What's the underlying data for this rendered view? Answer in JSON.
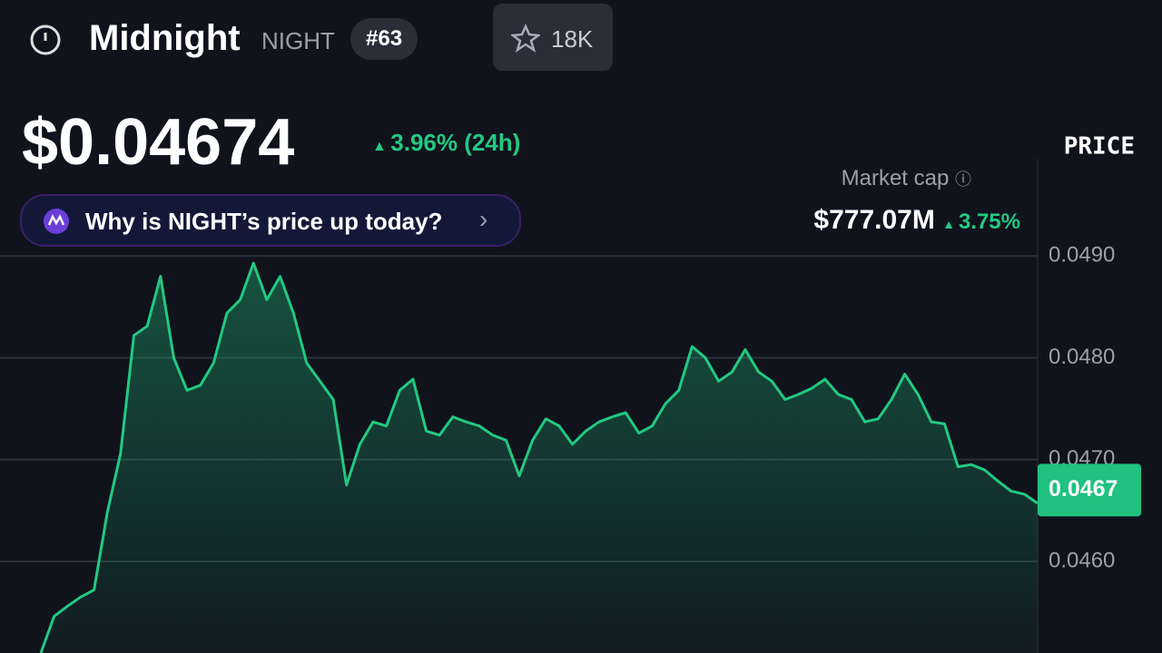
{
  "header": {
    "name": "Midnight",
    "symbol": "NIGHT",
    "rank": "#63",
    "watchlist": "18K",
    "price": "$0.04674",
    "change": "3.96% (24h)",
    "prompt": "Why is NIGHT’s price up today?",
    "market_cap_label": "Market cap",
    "market_cap": "$777.07M",
    "market_cap_change": "3.75%"
  },
  "chart_data": {
    "type": "line",
    "axis_title": "PRICE",
    "color": "#22c982",
    "values": [
      0.0451,
      0.04546,
      0.04556,
      0.04565,
      0.04572,
      0.04648,
      0.04706,
      0.04822,
      0.04831,
      0.0488,
      0.048,
      0.04768,
      0.04773,
      0.04795,
      0.04844,
      0.04857,
      0.04893,
      0.04857,
      0.0488,
      0.04844,
      0.04795,
      0.04777,
      0.04759,
      0.04675,
      0.04715,
      0.04737,
      0.04733,
      0.04768,
      0.04779,
      0.04728,
      0.04724,
      0.04742,
      0.04737,
      0.04733,
      0.04724,
      0.04719,
      0.04684,
      0.04719,
      0.0474,
      0.04733,
      0.04715,
      0.04728,
      0.04737,
      0.04742,
      0.04746,
      0.04726,
      0.04733,
      0.04755,
      0.04768,
      0.04811,
      0.048,
      0.04777,
      0.04786,
      0.04808,
      0.04786,
      0.04777,
      0.04759,
      0.04764,
      0.0477,
      0.04779,
      0.04764,
      0.04759,
      0.04737,
      0.0474,
      0.04759,
      0.04784,
      0.04764,
      0.04737,
      0.04735,
      0.04693,
      0.04695,
      0.0469,
      0.04679,
      0.04669,
      0.04666,
      0.04657
    ],
    "ylim": [
      0.0451,
      0.05
    ],
    "yticks": [
      {
        "value": 0.046,
        "label": "0.0460"
      },
      {
        "value": 0.047,
        "label": "0.0470"
      },
      {
        "value": 0.048,
        "label": "0.0480"
      },
      {
        "value": 0.049,
        "label": "0.0490"
      }
    ],
    "current_price": 0.0467,
    "grid": true
  }
}
